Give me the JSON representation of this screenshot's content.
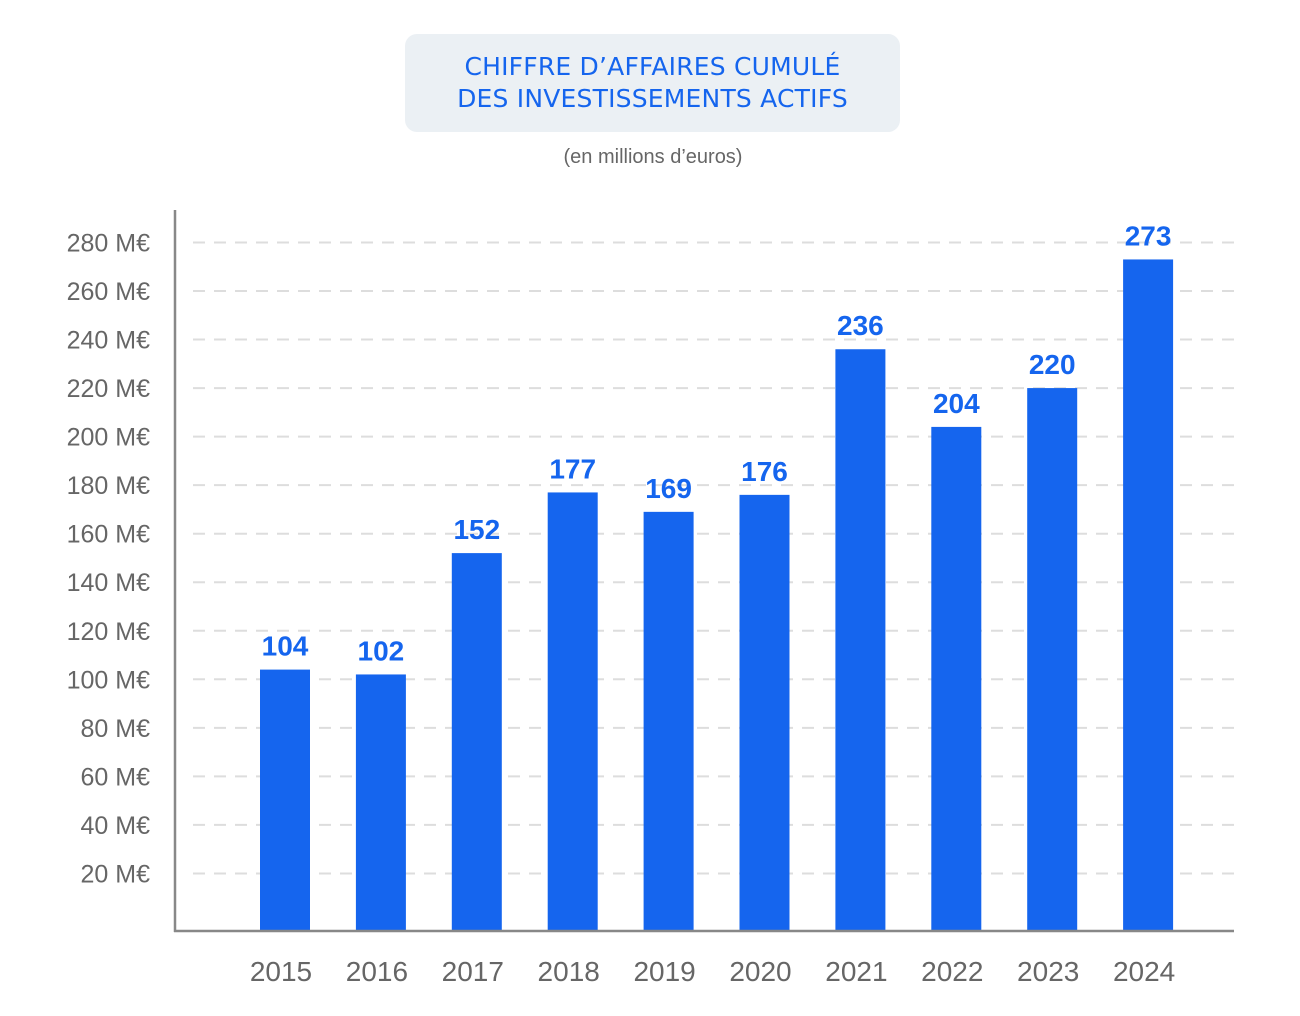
{
  "chart_data": {
    "type": "bar",
    "title": [
      "CHIFFRE D’AFFAIRES CUMULÉ",
      "DES INVESTISSEMENTS ACTIFS"
    ],
    "subtitle": "(en millions d’euros)",
    "xlabel": "",
    "ylabel": "",
    "categories": [
      "2015",
      "2016",
      "2017",
      "2018",
      "2019",
      "2020",
      "2021",
      "2022",
      "2023",
      "2024"
    ],
    "values": [
      104,
      102,
      152,
      177,
      169,
      176,
      236,
      204,
      220,
      273
    ],
    "data_labels": [
      "104",
      "102",
      "152",
      "177",
      "169",
      "176",
      "236",
      "204",
      "220",
      "273"
    ],
    "ylim": [
      0,
      280
    ],
    "yticks": [
      20,
      40,
      60,
      80,
      100,
      120,
      140,
      160,
      180,
      200,
      220,
      240,
      260,
      280
    ],
    "ytick_labels": [
      "20 M€",
      "40 M€",
      "60 M€",
      "80 M€",
      "100 M€",
      "120 M€",
      "140 M€",
      "160 M€",
      "180 M€",
      "200 M€",
      "220 M€",
      "240 M€",
      "260 M€",
      "280 M€"
    ],
    "grid": true,
    "grid_style": "dashed",
    "legend": "none",
    "colors": {
      "bar": "#1565ee",
      "data_label": "#1565ee",
      "title": "#1565ee",
      "title_background": "#ebf0f4",
      "axis_text": "#666666",
      "grid": "#dddddd",
      "axis_line": "#888888"
    }
  }
}
